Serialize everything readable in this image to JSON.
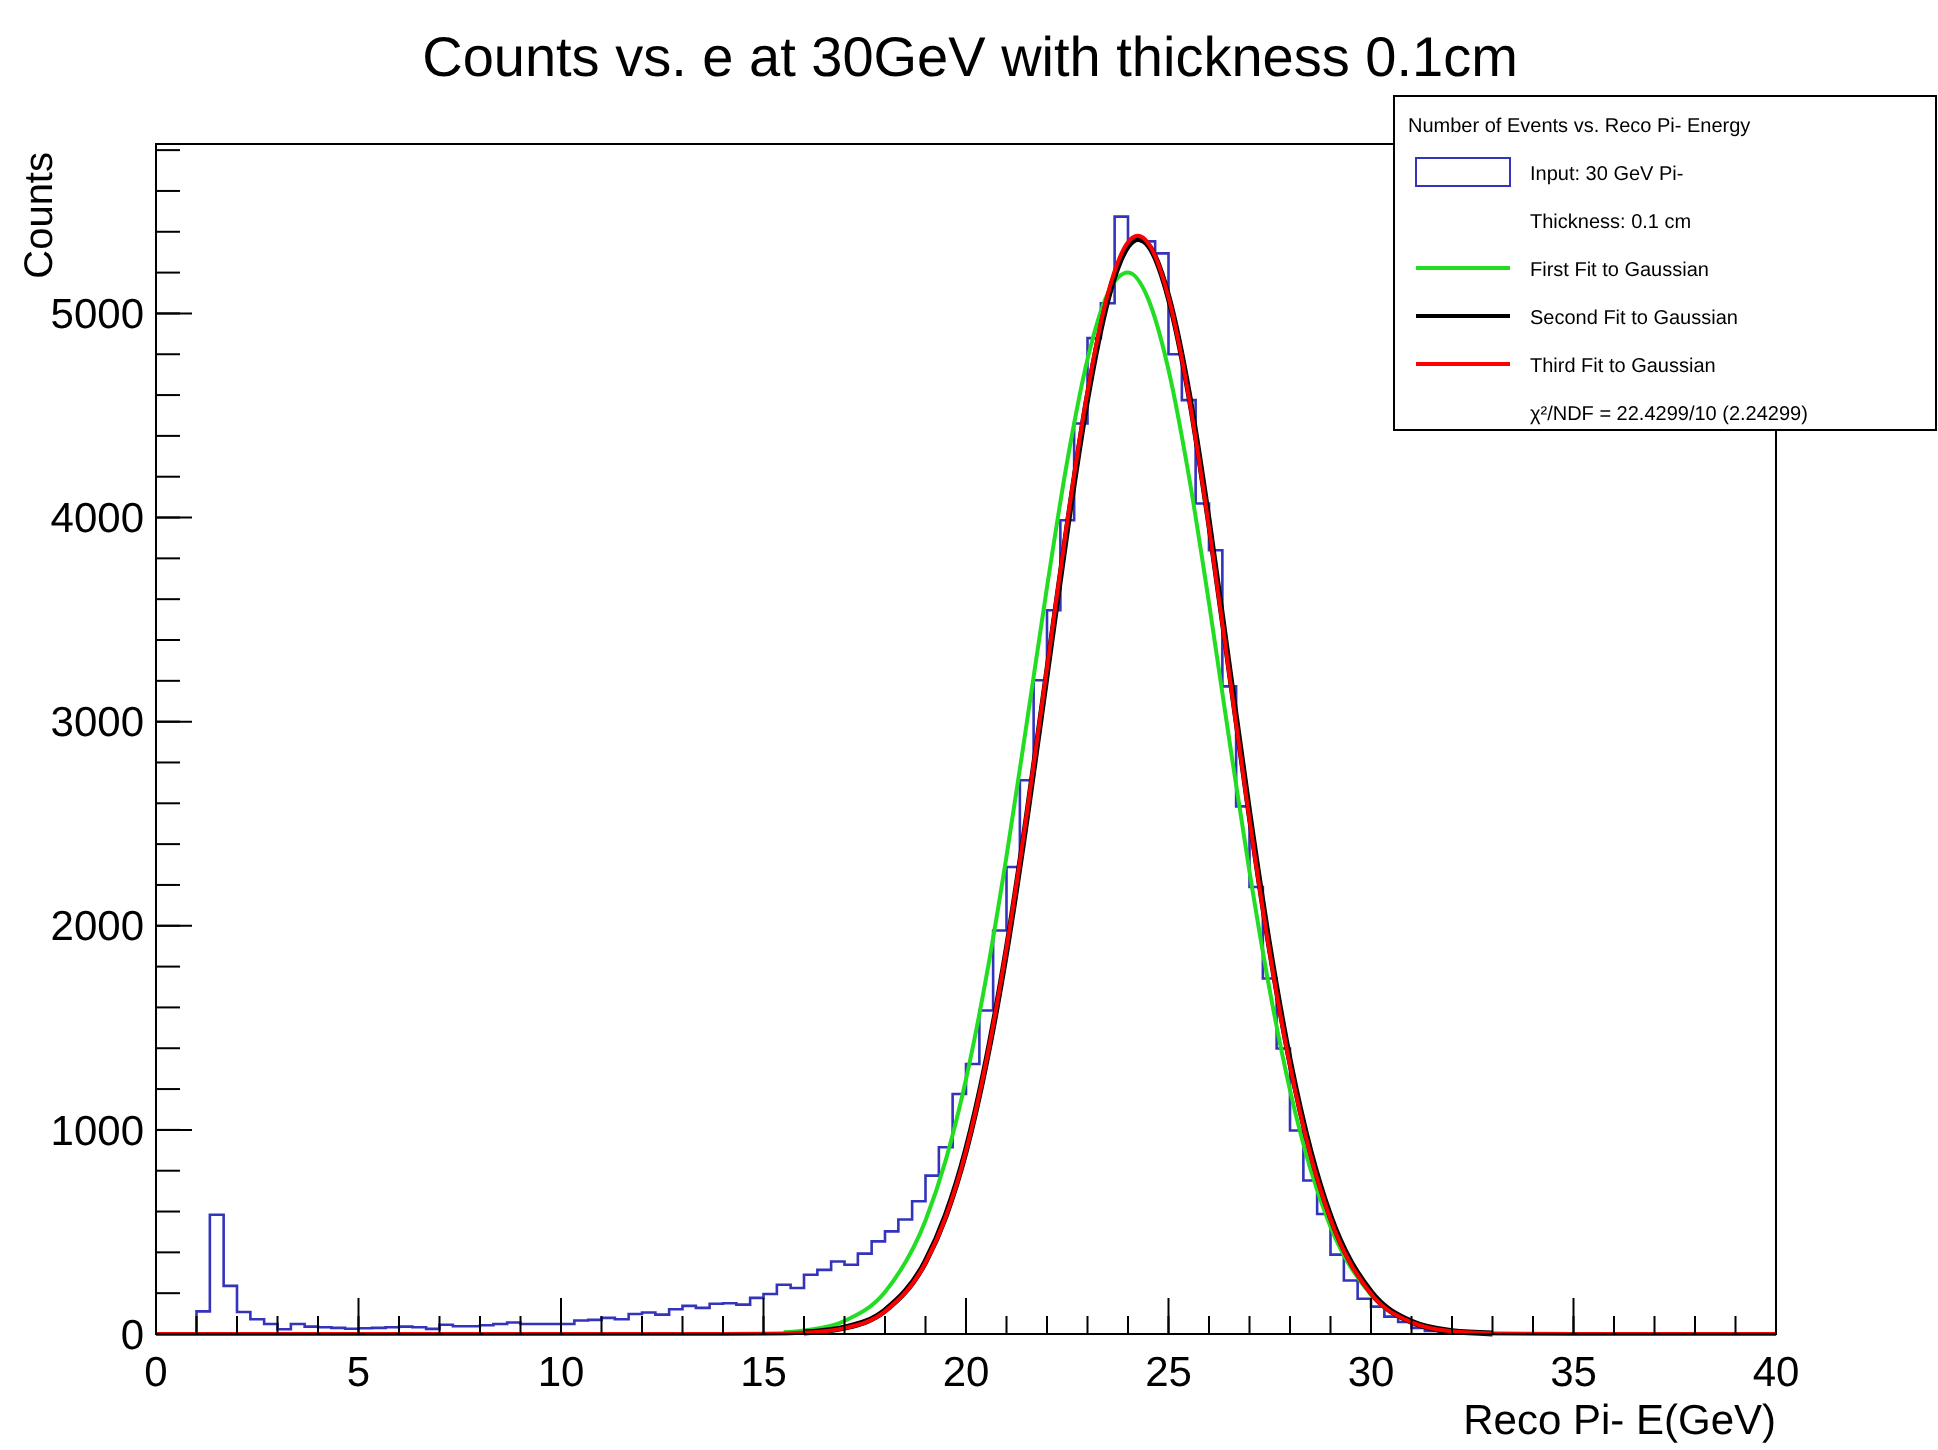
{
  "chart_data": {
    "type": "histogram",
    "title": "Counts vs. e at 30GeV with thickness 0.1cm",
    "xlabel": "Reco Pi- E(GeV)",
    "ylabel": "Counts",
    "legend_title": "Number of Events vs. Reco Pi- Energy",
    "legend": "top right",
    "grid": false,
    "annotations": [
      "Thickness: 0.1 cm",
      "χ²/NDF = 22.4299/10 (2.24299)"
    ],
    "xlim": [
      0,
      40
    ],
    "ylim": [
      0,
      5830
    ],
    "xticks": [
      0,
      5,
      10,
      15,
      20,
      25,
      30,
      35,
      40
    ],
    "yticks": [
      0,
      1000,
      2000,
      3000,
      4000,
      5000
    ],
    "series": [
      {
        "name": "Input: 30 GeV Pi-",
        "type": "histogram",
        "color": "#3333bb",
        "bins": [
          1,
          1.33,
          1.67,
          2,
          2.33,
          2.67,
          3,
          3.33,
          3.67,
          4,
          4.33,
          4.67,
          5,
          5.33,
          5.67,
          6,
          6.33,
          6.67,
          7,
          7.33,
          7.67,
          8,
          8.33,
          8.67,
          9,
          9.33,
          9.67,
          10,
          10.33,
          10.67,
          11,
          11.33,
          11.67,
          12,
          12.33,
          12.67,
          13,
          13.33,
          13.67,
          14,
          14.33,
          14.67,
          15,
          15.33,
          15.67,
          16,
          16.33,
          16.67,
          17,
          17.33,
          17.67,
          18,
          18.33,
          18.67,
          19,
          19.33,
          19.67,
          20,
          20.33,
          20.67,
          21,
          21.33,
          21.67,
          22,
          22.33,
          22.67,
          23,
          23.33,
          23.67,
          24,
          24.33,
          24.67,
          25,
          25.33,
          25.67,
          26,
          26.33,
          26.67,
          27,
          27.33,
          27.67,
          28,
          28.33,
          28.67,
          29,
          29.33,
          29.67,
          30,
          30.33,
          30.67,
          31,
          31.33,
          31.67,
          32,
          32.33
        ],
        "values": [
          111,
          584,
          236,
          108,
          72,
          49,
          23,
          49,
          36,
          33,
          30,
          26,
          28,
          30,
          33,
          36,
          33,
          25,
          45,
          38,
          38,
          43,
          49,
          56,
          49,
          49,
          49,
          49,
          66,
          69,
          79,
          72,
          98,
          105,
          95,
          121,
          138,
          128,
          148,
          151,
          144,
          177,
          196,
          241,
          225,
          290,
          314,
          355,
          339,
          394,
          454,
          503,
          561,
          650,
          776,
          915,
          1176,
          1323,
          1585,
          1977,
          2288,
          2713,
          3203,
          3546,
          3987,
          4461,
          4879,
          5050,
          5474,
          5360,
          5353,
          5294,
          4800,
          4575,
          4069,
          3840,
          3173,
          2585,
          2190,
          1742,
          1399,
          997,
          752,
          588,
          389,
          262,
          173,
          134,
          85,
          59,
          30,
          15,
          8,
          5
        ]
      },
      {
        "name": "First Fit to Gaussian",
        "type": "line",
        "color": "#22dd22",
        "x": [
          15.5,
          16,
          17,
          18,
          19,
          19.5,
          20,
          20.5,
          21,
          21.5,
          22,
          22.5,
          23,
          23.5,
          24,
          24.5,
          25,
          25.5,
          26,
          26.5,
          27,
          27.5,
          28,
          28.5,
          29,
          30,
          31,
          31.5
        ],
        "values": [
          8,
          17,
          64,
          206,
          556,
          852,
          1248,
          1748,
          2340,
          2993,
          3659,
          4276,
          4775,
          5097,
          5200,
          5070,
          4724,
          4207,
          3581,
          2912,
          2265,
          1683,
          1195,
          811,
          526,
          193,
          59,
          31
        ]
      },
      {
        "name": "Second Fit to Gaussian",
        "type": "line",
        "color": "#000000",
        "x": [
          16,
          17,
          18,
          19,
          19.5,
          20,
          20.5,
          21,
          21.5,
          22,
          22.5,
          23,
          23.5,
          24,
          24.25,
          24.5,
          25,
          25.5,
          26,
          26.5,
          27,
          27.5,
          28,
          28.5,
          29,
          30,
          31,
          32,
          33
        ],
        "values": [
          7,
          31,
          115,
          355,
          580,
          900,
          1335,
          1880,
          2530,
          3240,
          3950,
          4590,
          5070,
          5330,
          5365,
          5335,
          5080,
          4610,
          3975,
          3260,
          2545,
          1890,
          1335,
          898,
          575,
          205,
          60,
          14,
          3
        ]
      },
      {
        "name": "Third Fit to Gaussian",
        "type": "line",
        "color": "#ff0000",
        "x": [
          0,
          14,
          15,
          16,
          17,
          18,
          19,
          19.5,
          20,
          20.5,
          21,
          21.5,
          22,
          22.5,
          23,
          23.5,
          24,
          24.24,
          24.5,
          25,
          25.5,
          26,
          26.5,
          27,
          27.5,
          28,
          28.5,
          29,
          30,
          31,
          32,
          33,
          35,
          40
        ],
        "values": [
          0,
          0,
          1,
          6,
          29,
          111,
          349,
          574,
          897,
          1336,
          1891,
          2546,
          3263,
          3979,
          4616,
          5094,
          5349,
          5380,
          5344,
          5079,
          4594,
          3952,
          3235,
          2519,
          1867,
          1316,
          882,
          563,
          197,
          57,
          13,
          3,
          0,
          0
        ]
      }
    ]
  }
}
